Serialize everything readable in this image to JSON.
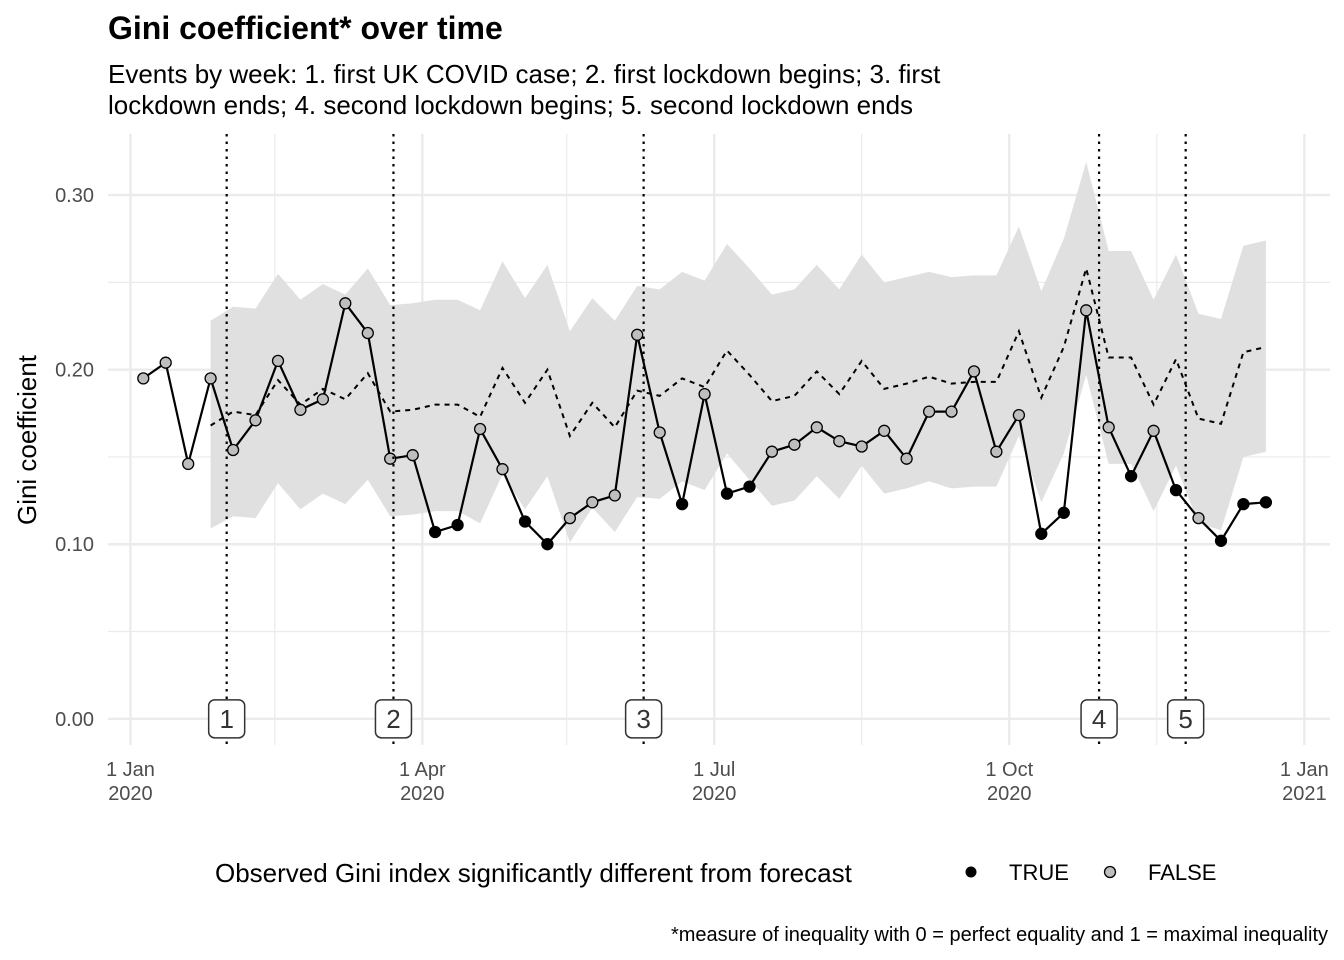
{
  "chart_data": {
    "type": "line",
    "title": "Gini coefficient* over time",
    "subtitle_lines": [
      "Events by week: 1. first UK COVID case; 2. first lockdown begins; 3. first",
      "lockdown ends; 4. second lockdown begins; 5. second lockdown ends"
    ],
    "xlabel": "",
    "ylabel": "Gini coefficient",
    "caption": "*measure of inequality with 0 = perfect equality and 1 = maximal inequality",
    "ylim": [
      -0.015,
      0.335
    ],
    "xlim": [
      "2019-12-25",
      "2021-01-09"
    ],
    "y_ticks": [
      {
        "value": 0.0,
        "label": "0.00"
      },
      {
        "value": 0.1,
        "label": "0.10"
      },
      {
        "value": 0.2,
        "label": "0.20"
      },
      {
        "value": 0.3,
        "label": "0.30"
      }
    ],
    "x_ticks": [
      {
        "date": "2020-01-01",
        "line1": "1 Jan",
        "line2": "2020"
      },
      {
        "date": "2020-04-01",
        "line1": "1 Apr",
        "line2": "2020"
      },
      {
        "date": "2020-07-01",
        "line1": "1 Jul",
        "line2": "2020"
      },
      {
        "date": "2020-10-01",
        "line1": "1 Oct",
        "line2": "2020"
      },
      {
        "date": "2021-01-01",
        "line1": "1 Jan",
        "line2": "2021"
      }
    ],
    "grid": true,
    "legend": {
      "title": "Observed Gini index significantly different from forecast",
      "position": "bottom",
      "entries": [
        {
          "label": "TRUE",
          "color": "#000000"
        },
        {
          "label": "FALSE",
          "color": "#bebebe"
        }
      ]
    },
    "events": [
      {
        "label": "1",
        "date": "2020-01-31"
      },
      {
        "label": "2",
        "date": "2020-03-23"
      },
      {
        "label": "3",
        "date": "2020-06-09"
      },
      {
        "label": "4",
        "date": "2020-10-29"
      },
      {
        "label": "5",
        "date": "2020-11-25"
      }
    ],
    "colors": {
      "band": "#e0e0e0",
      "line": "#000000",
      "grid": "#ebebeb",
      "true_point": "#000000",
      "false_point": "#bebebe"
    },
    "observed": {
      "name": "Observed",
      "dates": [
        "2020-01-05",
        "2020-01-12",
        "2020-01-19",
        "2020-01-26",
        "2020-02-02",
        "2020-02-09",
        "2020-02-16",
        "2020-02-23",
        "2020-03-01",
        "2020-03-08",
        "2020-03-15",
        "2020-03-22",
        "2020-03-29",
        "2020-04-05",
        "2020-04-12",
        "2020-04-19",
        "2020-04-26",
        "2020-05-03",
        "2020-05-10",
        "2020-05-17",
        "2020-05-24",
        "2020-05-31",
        "2020-06-07",
        "2020-06-14",
        "2020-06-21",
        "2020-06-28",
        "2020-07-05",
        "2020-07-12",
        "2020-07-19",
        "2020-07-26",
        "2020-08-02",
        "2020-08-09",
        "2020-08-16",
        "2020-08-23",
        "2020-08-30",
        "2020-09-06",
        "2020-09-13",
        "2020-09-20",
        "2020-09-27",
        "2020-10-04",
        "2020-10-11",
        "2020-10-18",
        "2020-10-25",
        "2020-11-01",
        "2020-11-08",
        "2020-11-15",
        "2020-11-22",
        "2020-11-29",
        "2020-12-06",
        "2020-12-13",
        "2020-12-20"
      ],
      "values": [
        0.195,
        0.204,
        0.146,
        0.195,
        0.154,
        0.171,
        0.205,
        0.177,
        0.183,
        0.238,
        0.221,
        0.149,
        0.151,
        0.107,
        0.111,
        0.166,
        0.143,
        0.113,
        0.1,
        0.115,
        0.124,
        0.128,
        0.22,
        0.164,
        0.123,
        0.186,
        0.129,
        0.133,
        0.153,
        0.157,
        0.167,
        0.159,
        0.156,
        0.165,
        0.149,
        0.176,
        0.176,
        0.199,
        0.153,
        0.174,
        0.106,
        0.118,
        0.234,
        0.167,
        0.139,
        0.165,
        0.131,
        0.115,
        0.102,
        0.123,
        0.124
      ],
      "significant": [
        false,
        false,
        false,
        false,
        false,
        false,
        false,
        false,
        false,
        false,
        false,
        false,
        false,
        true,
        true,
        false,
        false,
        true,
        true,
        false,
        false,
        false,
        false,
        false,
        true,
        false,
        true,
        true,
        false,
        false,
        false,
        false,
        false,
        false,
        false,
        false,
        false,
        false,
        false,
        false,
        true,
        true,
        false,
        false,
        true,
        false,
        true,
        false,
        true,
        true,
        true
      ]
    },
    "forecast": {
      "name": "Forecast",
      "dates": [
        "2020-01-26",
        "2020-02-02",
        "2020-02-09",
        "2020-02-16",
        "2020-02-23",
        "2020-03-01",
        "2020-03-08",
        "2020-03-15",
        "2020-03-22",
        "2020-03-29",
        "2020-04-05",
        "2020-04-12",
        "2020-04-19",
        "2020-04-26",
        "2020-05-03",
        "2020-05-10",
        "2020-05-17",
        "2020-05-24",
        "2020-05-31",
        "2020-06-07",
        "2020-06-14",
        "2020-06-21",
        "2020-06-28",
        "2020-07-05",
        "2020-07-12",
        "2020-07-19",
        "2020-07-26",
        "2020-08-02",
        "2020-08-09",
        "2020-08-16",
        "2020-08-23",
        "2020-08-30",
        "2020-09-06",
        "2020-09-13",
        "2020-09-20",
        "2020-09-27",
        "2020-10-04",
        "2020-10-11",
        "2020-10-18",
        "2020-10-25",
        "2020-11-01",
        "2020-11-08",
        "2020-11-15",
        "2020-11-22",
        "2020-11-29",
        "2020-12-06",
        "2020-12-13",
        "2020-12-20"
      ],
      "values": [
        0.168,
        0.176,
        0.174,
        0.194,
        0.18,
        0.189,
        0.183,
        0.198,
        0.176,
        0.177,
        0.18,
        0.18,
        0.173,
        0.201,
        0.181,
        0.2,
        0.162,
        0.181,
        0.167,
        0.188,
        0.185,
        0.195,
        0.19,
        0.211,
        0.197,
        0.182,
        0.185,
        0.199,
        0.186,
        0.205,
        0.189,
        0.192,
        0.196,
        0.192,
        0.193,
        0.193,
        0.222,
        0.184,
        0.213,
        0.258,
        0.207,
        0.207,
        0.18,
        0.206,
        0.172,
        0.169,
        0.21,
        0.213
      ],
      "lower": [
        0.109,
        0.116,
        0.115,
        0.135,
        0.12,
        0.129,
        0.123,
        0.137,
        0.116,
        0.117,
        0.119,
        0.119,
        0.112,
        0.14,
        0.12,
        0.139,
        0.101,
        0.121,
        0.107,
        0.127,
        0.126,
        0.136,
        0.131,
        0.152,
        0.137,
        0.122,
        0.125,
        0.139,
        0.126,
        0.145,
        0.129,
        0.132,
        0.136,
        0.132,
        0.133,
        0.133,
        0.162,
        0.124,
        0.152,
        0.197,
        0.146,
        0.146,
        0.119,
        0.145,
        0.112,
        0.108,
        0.15,
        0.153
      ],
      "upper": [
        0.228,
        0.236,
        0.235,
        0.255,
        0.24,
        0.249,
        0.243,
        0.258,
        0.237,
        0.238,
        0.24,
        0.24,
        0.234,
        0.262,
        0.241,
        0.26,
        0.222,
        0.241,
        0.228,
        0.248,
        0.246,
        0.256,
        0.251,
        0.272,
        0.258,
        0.243,
        0.246,
        0.26,
        0.246,
        0.266,
        0.25,
        0.253,
        0.256,
        0.253,
        0.254,
        0.254,
        0.282,
        0.245,
        0.275,
        0.319,
        0.268,
        0.268,
        0.24,
        0.266,
        0.232,
        0.229,
        0.271,
        0.274
      ]
    }
  }
}
